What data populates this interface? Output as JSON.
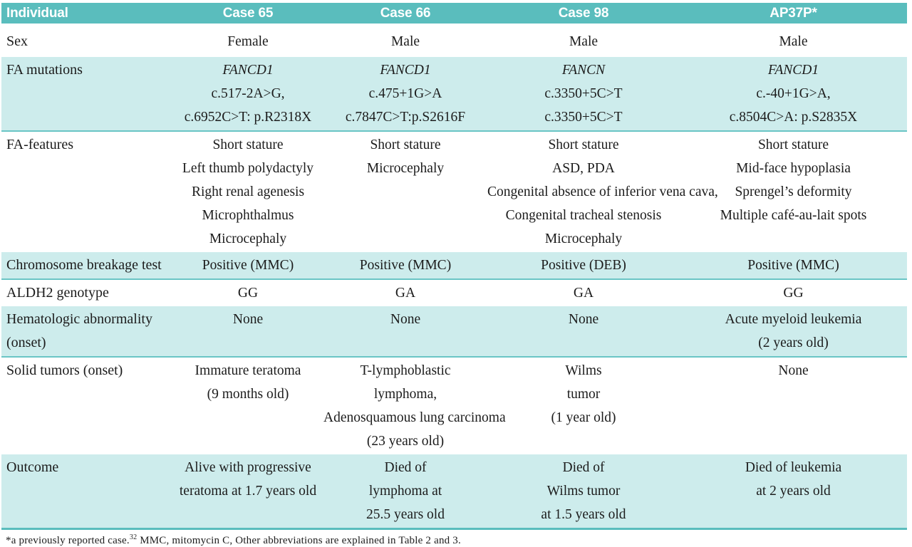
{
  "colors": {
    "header_teal": "#5abdbd",
    "row_tint": "#cdecec",
    "row_border": "#6ac5c5",
    "header_text": "#ffffff",
    "body_text": "#1c1c1c"
  },
  "table": {
    "columns": [
      "Individual",
      "Case 65",
      "Case 66",
      "Case 98",
      "AP37P*"
    ],
    "rows": [
      {
        "tint": false,
        "first_row": true,
        "label": [
          "Sex"
        ],
        "cells": [
          [
            "Female"
          ],
          [
            "Male"
          ],
          [
            "Male"
          ],
          [
            "Male"
          ]
        ]
      },
      {
        "tint": true,
        "gene_row": true,
        "label": [
          "FA mutations"
        ],
        "cells": [
          [
            "FANCD1",
            "c.517-2A>G,",
            "c.6952C>T: p.R2318X"
          ],
          [
            "FANCD1",
            "c.475+1G>A",
            "c.7847C>T:p.S2616F"
          ],
          [
            "FANCN",
            "c.3350+5C>T",
            "c.3350+5C>T"
          ],
          [
            "FANCD1",
            "c.-40+1G>A,",
            "c.8504C>A: p.S2835X"
          ]
        ]
      },
      {
        "tint": false,
        "label": [
          "FA-features"
        ],
        "cells": [
          [
            "Short stature",
            "Left thumb polydactyly",
            "Right renal agenesis",
            "Microphthalmus",
            "Microcephaly"
          ],
          [
            "Short stature",
            "Microcephaly"
          ],
          [
            "Short stature",
            "ASD, PDA",
            "Congenital absence of inferior vena cava,",
            "Congenital tracheal stenosis",
            "Microcephaly"
          ],
          [
            "Short stature",
            "Mid-face hypoplasia",
            "Sprengel’s deformity",
            "Multiple café-au-lait spots"
          ]
        ]
      },
      {
        "tint": true,
        "label": [
          "Chromosome breakage test"
        ],
        "cells": [
          [
            "Positive (MMC)"
          ],
          [
            "Positive (MMC)"
          ],
          [
            "Positive (DEB)"
          ],
          [
            "Positive (MMC)"
          ]
        ]
      },
      {
        "tint": false,
        "label": [
          "ALDH2 genotype"
        ],
        "cells": [
          [
            "GG"
          ],
          [
            "GA"
          ],
          [
            "GA"
          ],
          [
            "GG"
          ]
        ]
      },
      {
        "tint": true,
        "label": [
          "Hematologic abnormality",
          "(onset)"
        ],
        "cells": [
          [
            "None"
          ],
          [
            "None"
          ],
          [
            "None"
          ],
          [
            "Acute myeloid leukemia",
            "(2 years old)"
          ]
        ]
      },
      {
        "tint": false,
        "label": [
          "Solid tumors (onset)"
        ],
        "cells": [
          [
            "Immature teratoma",
            "(9 months old)"
          ],
          [
            "T-lymphoblastic",
            "lymphoma,",
            "Adenosquamous lung carcinoma",
            "(23 years old)"
          ],
          [
            "Wilms",
            "tumor",
            "(1 year old)"
          ],
          [
            "None"
          ]
        ]
      },
      {
        "tint": true,
        "last": true,
        "label": [
          "Outcome"
        ],
        "cells": [
          [
            "Alive with progressive",
            "teratoma at 1.7 years old"
          ],
          [
            "Died of",
            "lymphoma at",
            "25.5 years old"
          ],
          [
            "Died of",
            "Wilms tumor",
            "at 1.5 years old"
          ],
          [
            "Died of leukemia",
            "at 2 years old"
          ]
        ]
      }
    ],
    "footnote": {
      "prefix": "*a previously reported case.",
      "sup": "32",
      "rest": " MMC, mitomycin C, Other abbreviations are explained in Table 2 and 3."
    }
  }
}
